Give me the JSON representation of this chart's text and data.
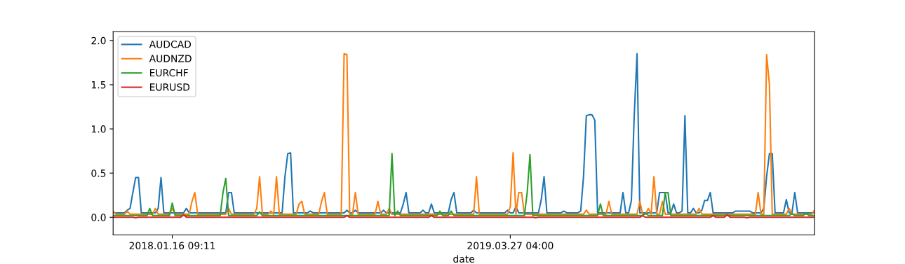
{
  "chart_data": {
    "type": "line",
    "xlabel": "date",
    "legend": "top left",
    "grid": false,
    "marker": "none",
    "line_style": "solid",
    "categories": [
      null,
      null,
      null,
      null,
      null,
      null,
      null,
      null,
      null,
      null,
      null,
      null,
      null,
      null,
      null,
      null,
      null,
      null,
      null,
      null,
      null,
      "2018.01.16 09:11",
      null,
      null,
      null,
      null,
      null,
      null,
      null,
      null,
      null,
      null,
      null,
      null,
      null,
      null,
      null,
      null,
      null,
      null,
      null,
      null,
      null,
      null,
      null,
      null,
      null,
      null,
      null,
      null,
      null,
      null,
      null,
      null,
      null,
      null,
      null,
      null,
      null,
      null,
      null,
      null,
      null,
      null,
      null,
      null,
      null,
      null,
      null,
      null,
      null,
      null,
      null,
      null,
      null,
      null,
      null,
      null,
      null,
      null,
      null,
      null,
      null,
      null,
      null,
      null,
      null,
      null,
      null,
      null,
      null,
      null,
      null,
      null,
      null,
      null,
      null,
      null,
      null,
      null,
      null,
      null,
      null,
      null,
      null,
      null,
      null,
      null,
      null,
      null,
      null,
      null,
      null,
      null,
      null,
      null,
      null,
      null,
      null,
      null,
      null,
      null,
      null,
      null,
      null,
      null,
      null,
      null,
      null,
      null,
      null,
      null,
      null,
      null,
      null,
      null,
      null,
      null,
      null,
      null,
      null,
      "2019.03.27 04:00",
      null,
      null,
      null,
      null,
      null,
      null,
      null,
      null,
      null,
      null,
      null,
      null,
      null,
      null,
      null,
      null,
      null,
      null,
      null,
      null,
      null,
      null,
      null,
      null,
      null,
      null,
      null,
      null,
      null,
      null,
      null,
      null,
      null,
      null,
      null,
      null,
      null,
      null,
      null,
      null,
      null,
      null,
      null,
      null,
      null,
      null,
      null,
      null,
      null,
      null,
      null,
      null,
      null,
      null,
      null,
      null,
      null,
      null,
      null,
      null,
      null,
      null,
      null,
      null,
      null,
      null,
      null,
      null,
      null,
      null,
      null,
      null,
      null,
      null,
      null,
      null,
      null,
      null,
      null,
      null,
      null,
      null,
      null,
      null,
      null,
      null,
      null,
      null,
      null,
      null,
      null,
      null,
      null,
      null,
      null,
      null,
      null,
      null,
      null,
      null,
      null,
      null,
      null,
      null,
      null,
      null,
      null,
      null
    ],
    "ylim": [
      -0.2,
      2.1
    ],
    "yticks": [
      {
        "value": 0,
        "label": "0.0"
      },
      {
        "value": 0.5,
        "label": "0.5"
      },
      {
        "value": 1,
        "label": "1.0"
      },
      {
        "value": 1.5,
        "label": "1.5"
      },
      {
        "value": 2,
        "label": "2.0"
      }
    ],
    "series": [
      {
        "name": "AUDCAD",
        "color": "#1f77b4",
        "values": [
          0.05,
          0.05,
          0.05,
          0.05,
          0.05,
          0.08,
          0.1,
          0.28,
          0.45,
          0.45,
          0.05,
          0.05,
          0.05,
          0.05,
          0.05,
          0.05,
          0.1,
          0.45,
          0.05,
          0.05,
          0.05,
          0.05,
          0.05,
          0.05,
          0.05,
          0.05,
          0.1,
          0.05,
          0.05,
          0.05,
          0.05,
          0.05,
          0.05,
          0.05,
          0.05,
          0.05,
          0.05,
          0.05,
          0.05,
          0.05,
          0.05,
          0.28,
          0.28,
          0.05,
          0.05,
          0.05,
          0.05,
          0.05,
          0.05,
          0.05,
          0.05,
          0.05,
          0.05,
          0.05,
          0.05,
          0.05,
          0.05,
          0.05,
          0.05,
          0.05,
          0.05,
          0.46,
          0.72,
          0.73,
          0.05,
          0.05,
          0.05,
          0.05,
          0.05,
          0.05,
          0.07,
          0.05,
          0.05,
          0.05,
          0.05,
          0.05,
          0.05,
          0.05,
          0.05,
          0.05,
          0.05,
          0.05,
          0.05,
          0.08,
          0.05,
          0.05,
          0.08,
          0.05,
          0.05,
          0.05,
          0.05,
          0.05,
          0.05,
          0.05,
          0.05,
          0.05,
          0.08,
          0.05,
          0.05,
          0.05,
          0.05,
          0.05,
          0.05,
          0.15,
          0.28,
          0.05,
          0.05,
          0.05,
          0.05,
          0.05,
          0.08,
          0.05,
          0.05,
          0.15,
          0.05,
          0.05,
          0.05,
          0.05,
          0.05,
          0.05,
          0.2,
          0.28,
          0.05,
          0.05,
          0.05,
          0.05,
          0.05,
          0.05,
          0.08,
          0.05,
          0.05,
          0.05,
          0.05,
          0.05,
          0.05,
          0.05,
          0.05,
          0.05,
          0.05,
          0.05,
          0.08,
          0.05,
          0.05,
          0.12,
          0.05,
          0.05,
          0.05,
          0.05,
          0.05,
          0.05,
          0.05,
          0.05,
          0.2,
          0.46,
          0.05,
          0.05,
          0.05,
          0.05,
          0.05,
          0.05,
          0.07,
          0.05,
          0.05,
          0.05,
          0.05,
          0.05,
          0.07,
          0.46,
          1.15,
          1.16,
          1.16,
          1.1,
          0.05,
          0.05,
          0.05,
          0.05,
          0.05,
          0.05,
          0.05,
          0.05,
          0.05,
          0.28,
          0.05,
          0.05,
          0.19,
          1.15,
          1.85,
          0.05,
          0.05,
          0.05,
          0.05,
          0.05,
          0.05,
          0.05,
          0.28,
          0.28,
          0.28,
          0.05,
          0.05,
          0.15,
          0.05,
          0.05,
          0.07,
          1.15,
          0.05,
          0.05,
          0.1,
          0.05,
          0.05,
          0.08,
          0.19,
          0.19,
          0.28,
          0.05,
          0.05,
          0.05,
          0.05,
          0.05,
          0.05,
          0.05,
          0.05,
          0.07,
          0.07,
          0.07,
          0.07,
          0.07,
          0.07,
          0.05,
          0.05,
          0.05,
          0.05,
          0.1,
          0.46,
          0.72,
          0.72,
          0.05,
          0.05,
          0.05,
          0.05,
          0.2,
          0.05,
          0.05,
          0.28,
          0.05,
          0.05,
          0.05,
          0.05,
          0.05,
          0.05,
          0.05
        ]
      },
      {
        "name": "AUDNZD",
        "color": "#ff7f0e",
        "values": [
          0.07,
          0.035,
          0.035,
          0.035,
          0.035,
          0.07,
          0.035,
          0.035,
          0.035,
          0.035,
          0.035,
          0.035,
          0.035,
          0.035,
          0.035,
          0.1,
          0.035,
          0.035,
          0.035,
          0.035,
          0.035,
          0.1,
          0.035,
          0.035,
          0.035,
          0.035,
          0.035,
          0.035,
          0.18,
          0.28,
          0.035,
          0.035,
          0.035,
          0.035,
          0.035,
          0.035,
          0.035,
          0.035,
          0.035,
          0.035,
          0.035,
          0.1,
          0.035,
          0.035,
          0.035,
          0.035,
          0.035,
          0.035,
          0.035,
          0.035,
          0.035,
          0.1,
          0.46,
          0.035,
          0.035,
          0.035,
          0.07,
          0.035,
          0.46,
          0.035,
          0.035,
          0.035,
          0.035,
          0.035,
          0.035,
          0.035,
          0.15,
          0.18,
          0.035,
          0.035,
          0.035,
          0.035,
          0.035,
          0.035,
          0.18,
          0.28,
          0.035,
          0.035,
          0.035,
          0.035,
          0.035,
          0.035,
          1.85,
          1.84,
          0.035,
          0.035,
          0.28,
          0.035,
          0.035,
          0.035,
          0.035,
          0.035,
          0.035,
          0.035,
          0.18,
          0.035,
          0.035,
          0.035,
          0.1,
          0.035,
          0.035,
          0.035,
          0.035,
          0.035,
          0.035,
          0.035,
          0.035,
          0.035,
          0.035,
          0.035,
          0.035,
          0.035,
          0.035,
          0.035,
          0.035,
          0.035,
          0.035,
          0.035,
          0.035,
          0.035,
          0.035,
          0.035,
          0.035,
          0.035,
          0.035,
          0.035,
          0.035,
          0.035,
          0.035,
          0.46,
          0.035,
          0.035,
          0.035,
          0.035,
          0.035,
          0.035,
          0.035,
          0.035,
          0.035,
          0.035,
          0.035,
          0.12,
          0.73,
          0.035,
          0.28,
          0.28,
          0.035,
          0.035,
          0.035,
          0.035,
          0.035,
          0.035,
          0.035,
          0.035,
          0.035,
          0.035,
          0.035,
          0.035,
          0.035,
          0.035,
          0.035,
          0.035,
          0.035,
          0.035,
          0.035,
          0.035,
          0.035,
          0.035,
          0.08,
          0.035,
          0.035,
          0.035,
          0.035,
          0.035,
          0.035,
          0.035,
          0.18,
          0.035,
          0.035,
          0.035,
          0.035,
          0.035,
          0.035,
          0.035,
          0.035,
          0.035,
          0.035,
          0.18,
          0.035,
          0.035,
          0.1,
          0.035,
          0.46,
          0.035,
          0.035,
          0.18,
          0.035,
          0.035,
          0.035,
          0.035,
          0.035,
          0.035,
          0.035,
          0.035,
          0.035,
          0.035,
          0.035,
          0.035,
          0.1,
          0.035,
          0.035,
          0.035,
          0.035,
          0.035,
          0.035,
          0.035,
          0.035,
          0.035,
          0.035,
          0.035,
          0.035,
          0.035,
          0.035,
          0.035,
          0.035,
          0.035,
          0.035,
          0.035,
          0.035,
          0.28,
          0.035,
          0.035,
          1.84,
          1.5,
          0.035,
          0.035,
          0.035,
          0.035,
          0.035,
          0.035,
          0.1,
          0.035,
          0.035,
          0.035,
          0.035,
          0.035,
          0.035,
          0.035,
          0.035,
          0.08
        ]
      },
      {
        "name": "EURCHF",
        "color": "#2ca02c",
        "values": [
          0.02,
          0.02,
          0.02,
          0.02,
          0.02,
          0.02,
          0.02,
          0.02,
          0.02,
          0.02,
          0.02,
          0.02,
          0.02,
          0.1,
          0.02,
          0.02,
          0.02,
          0.02,
          0.02,
          0.02,
          0.02,
          0.16,
          0.02,
          0.02,
          0.02,
          0.02,
          0.02,
          0.02,
          0.02,
          0.02,
          0.02,
          0.02,
          0.02,
          0.02,
          0.02,
          0.02,
          0.02,
          0.02,
          0.02,
          0.28,
          0.44,
          0.02,
          0.02,
          0.02,
          0.02,
          0.02,
          0.02,
          0.02,
          0.02,
          0.02,
          0.02,
          0.02,
          0.06,
          0.02,
          0.02,
          0.02,
          0.02,
          0.02,
          0.02,
          0.02,
          0.02,
          0.02,
          0.02,
          0.02,
          0.02,
          0.02,
          0.02,
          0.02,
          0.02,
          0.02,
          0.02,
          0.02,
          0.02,
          0.02,
          0.02,
          0.02,
          0.02,
          0.02,
          0.02,
          0.02,
          0.02,
          0.02,
          0.02,
          0.02,
          0.02,
          0.02,
          0.02,
          0.02,
          0.02,
          0.02,
          0.02,
          0.02,
          0.02,
          0.02,
          0.02,
          0.02,
          0.02,
          0.02,
          0.02,
          0.72,
          0.02,
          0.07,
          0.02,
          0.02,
          0.02,
          0.02,
          0.02,
          0.02,
          0.02,
          0.02,
          0.02,
          0.02,
          0.02,
          0.02,
          0.02,
          0.02,
          0.07,
          0.02,
          0.02,
          0.02,
          0.07,
          0.02,
          0.02,
          0.02,
          0.02,
          0.02,
          0.02,
          0.02,
          0.02,
          0.02,
          0.02,
          0.02,
          0.02,
          0.02,
          0.02,
          0.02,
          0.02,
          0.02,
          0.02,
          0.02,
          0.02,
          0.02,
          0.02,
          0.02,
          0.02,
          0.02,
          0.02,
          0.28,
          0.71,
          0.02,
          0.02,
          0.02,
          0.02,
          0.02,
          0.02,
          0.02,
          0.02,
          0.02,
          0.02,
          0.02,
          0.02,
          0.02,
          0.02,
          0.02,
          0.02,
          0.02,
          0.02,
          0.02,
          0.02,
          0.02,
          0.02,
          0.02,
          0.02,
          0.15,
          0.02,
          0.02,
          0.02,
          0.02,
          0.02,
          0.02,
          0.02,
          0.02,
          0.02,
          0.02,
          0.02,
          0.02,
          0.02,
          0.02,
          0.02,
          0.05,
          0.02,
          0.02,
          0.02,
          0.02,
          0.02,
          0.02,
          0.28,
          0.28,
          0.02,
          0.02,
          0.02,
          0.02,
          0.02,
          0.02,
          0.02,
          0.02,
          0.02,
          0.02,
          0.02,
          0.02,
          0.02,
          0.02,
          0.02,
          0.02,
          0.02,
          0.02,
          0.02,
          0.02,
          0.02,
          0.02,
          0.02,
          0.02,
          0.02,
          0.02,
          0.02,
          0.02,
          0.02,
          0.02,
          0.02,
          0.02,
          0.02,
          0.02,
          0.02,
          0.02,
          0.02,
          0.02,
          0.02,
          0.02,
          0.02,
          0.02,
          0.02,
          0.04,
          0.02,
          0.02,
          0.02,
          0.02,
          0.05,
          0.02,
          0.02,
          0.02
        ]
      },
      {
        "name": "EURUSD",
        "color": "#d62728",
        "values": [
          0,
          0,
          0,
          0,
          0,
          0,
          0,
          0,
          -0.005,
          0,
          0,
          0,
          0,
          0,
          0,
          0,
          0,
          0,
          0,
          0,
          0,
          0,
          0,
          0,
          0,
          0.03,
          0,
          0,
          0,
          0,
          0,
          0,
          0,
          0,
          0,
          0,
          0,
          0,
          0,
          0,
          0,
          0,
          0,
          0,
          0,
          0,
          0,
          0,
          0,
          0,
          0,
          0,
          0,
          0,
          0,
          0,
          0,
          0,
          0,
          0,
          0,
          0,
          0,
          0,
          0,
          0,
          0,
          0,
          0,
          0,
          0,
          0,
          0,
          0,
          0,
          0,
          0,
          0,
          0,
          0,
          0,
          0,
          0,
          0.02,
          0,
          0,
          0,
          0,
          0,
          0,
          0,
          0,
          0,
          0,
          0,
          0,
          0,
          0,
          0,
          0,
          0,
          0,
          0,
          0,
          0,
          0,
          0,
          0,
          0,
          0,
          0,
          0,
          0,
          0.02,
          0,
          0,
          0,
          0,
          0,
          0,
          0,
          0,
          0,
          0,
          0,
          0,
          0,
          0,
          0,
          0,
          0,
          0,
          0,
          0,
          0,
          0,
          0,
          0,
          0,
          0,
          0,
          0,
          0,
          0,
          0,
          0,
          0,
          0,
          0,
          0,
          -0.005,
          0,
          0,
          0,
          0,
          0,
          0,
          0,
          0,
          0,
          0,
          0,
          0,
          0,
          0,
          0,
          0,
          0,
          0,
          0,
          0,
          0,
          0,
          0,
          0,
          0,
          0,
          0,
          0,
          0,
          0,
          0,
          0,
          0,
          0,
          0,
          0,
          0,
          0.02,
          0,
          0,
          0,
          0,
          0,
          0,
          0,
          0,
          0,
          0,
          0,
          0,
          0,
          0,
          0,
          0,
          0,
          0,
          0,
          0,
          0,
          0,
          0,
          0,
          0.02,
          0,
          0,
          0,
          0,
          0.03,
          0,
          0,
          0,
          0,
          0,
          0,
          -0.005,
          0,
          0,
          0,
          0,
          0,
          0,
          0,
          0,
          0,
          0,
          0,
          0,
          0,
          0,
          0,
          0,
          0,
          0,
          0,
          0,
          0,
          0,
          0,
          0
        ]
      }
    ]
  }
}
